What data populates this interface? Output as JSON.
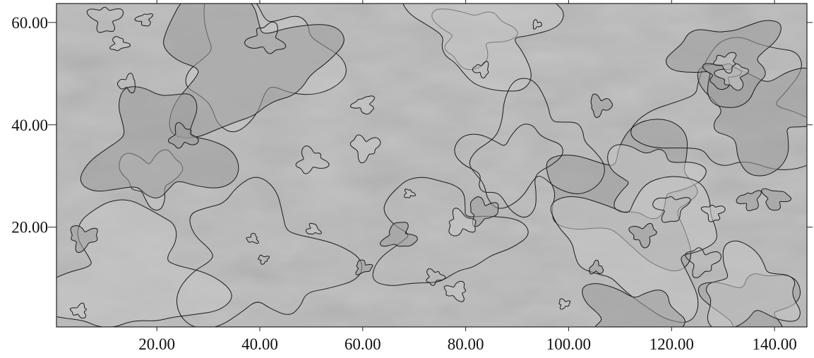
{
  "chart_data": {
    "type": "contour",
    "xlim": [
      0.5,
      146.3
    ],
    "ylim": [
      0.5,
      63.7
    ],
    "xticks": [
      {
        "value": 20,
        "label": "20.00"
      },
      {
        "value": 40,
        "label": "40.00"
      },
      {
        "value": 60,
        "label": "60.00"
      },
      {
        "value": 80,
        "label": "80.00"
      },
      {
        "value": 100,
        "label": "100.00"
      },
      {
        "value": 120,
        "label": "120.00"
      },
      {
        "value": 140,
        "label": "140.00"
      }
    ],
    "yticks": [
      {
        "value": 20,
        "label": "20.00"
      },
      {
        "value": 40,
        "label": "40.00"
      },
      {
        "value": 60,
        "label": "60.00"
      }
    ]
  }
}
